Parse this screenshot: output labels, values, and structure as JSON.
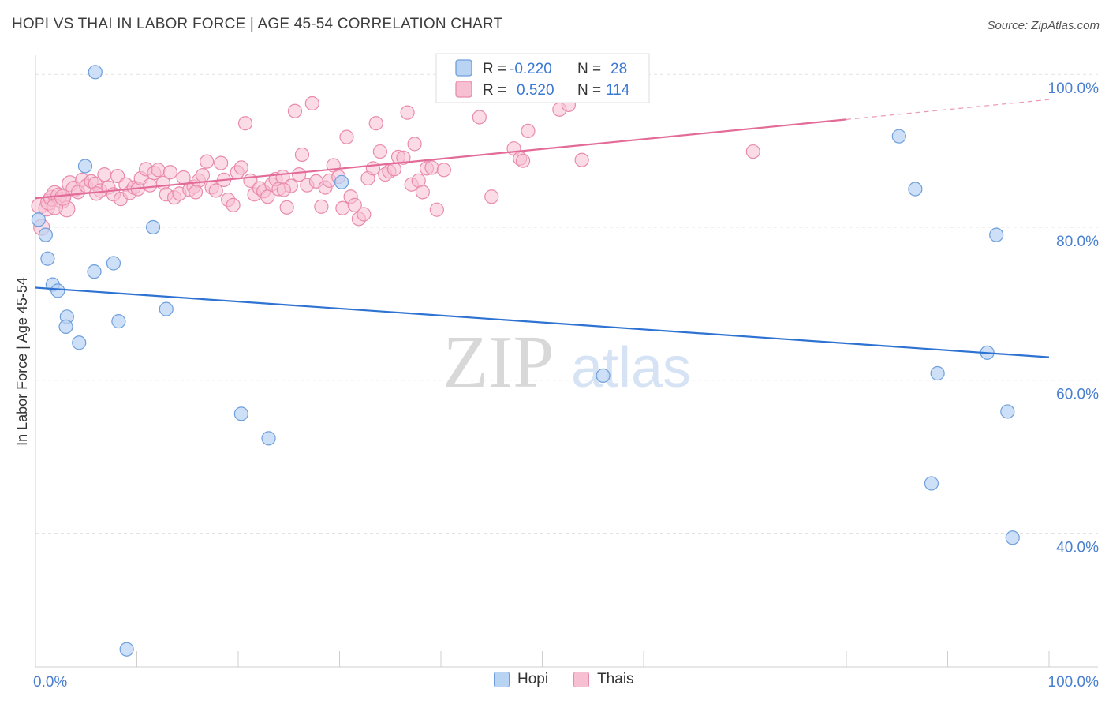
{
  "header": {
    "title": "HOPI VS THAI IN LABOR FORCE | AGE 45-54 CORRELATION CHART",
    "source": "Source: ZipAtlas.com"
  },
  "watermark": {
    "zip": "ZIP",
    "atlas": "atlas"
  },
  "colors": {
    "hopi_fill": "#b9d3f3",
    "hopi_stroke": "#6e9fdc",
    "hopi_line": "#2e72d2",
    "thai_fill": "#f7c0d2",
    "thai_stroke": "#e98bab",
    "thai_line": "#e36b97",
    "tick_label": "#4a7fcf",
    "grid": "#e3e3e3"
  },
  "legend_stats": [
    {
      "name": "Hopi",
      "r_label": "R = ",
      "r_value": "-0.220",
      "n_label": "N = ",
      "n_value": "28"
    },
    {
      "name": "Thais",
      "r_label": "R = ",
      "r_value": "0.520",
      "n_label": "N = ",
      "n_value": "114"
    }
  ],
  "chart_data": {
    "type": "scatter",
    "title": "HOPI VS THAI IN LABOR FORCE | AGE 45-54 CORRELATION CHART",
    "ylabel": "In Labor Force | Age 45-54",
    "xlabel": "",
    "xlim": [
      0,
      100
    ],
    "ylim": [
      22.5,
      102.5
    ],
    "x_tick_labels": [
      {
        "value": 0,
        "label": "0.0%"
      },
      {
        "value": 100,
        "label": "100.0%"
      }
    ],
    "y_tick_labels": [
      {
        "value": 100,
        "label": "100.0%"
      },
      {
        "value": 80,
        "label": "80.0%"
      },
      {
        "value": 60,
        "label": "60.0%"
      },
      {
        "value": 40,
        "label": "40.0%"
      }
    ],
    "legend": [
      "Hopi",
      "Thais"
    ],
    "series": [
      {
        "name": "Hopi",
        "trend": {
          "x0": 0,
          "y0": 72.1,
          "x1": 100,
          "y1": 63.0
        },
        "points": [
          [
            0.3,
            81.0
          ],
          [
            1.0,
            79.0
          ],
          [
            1.2,
            75.9
          ],
          [
            1.7,
            72.5
          ],
          [
            2.2,
            71.7
          ],
          [
            3.1,
            68.3
          ],
          [
            3.0,
            67.0
          ],
          [
            4.3,
            64.9
          ],
          [
            4.9,
            88.0
          ],
          [
            5.8,
            74.2
          ],
          [
            5.9,
            100.3
          ],
          [
            7.7,
            75.3
          ],
          [
            8.2,
            67.7
          ],
          [
            9.0,
            24.8
          ],
          [
            11.6,
            80.0
          ],
          [
            12.9,
            69.3
          ],
          [
            20.3,
            55.6
          ],
          [
            23.0,
            52.4
          ],
          [
            30.2,
            85.9
          ],
          [
            56.0,
            60.6
          ],
          [
            85.2,
            91.9
          ],
          [
            86.8,
            85.0
          ],
          [
            88.4,
            46.5
          ],
          [
            89.0,
            60.9
          ],
          [
            93.9,
            63.6
          ],
          [
            94.8,
            79.0
          ],
          [
            95.9,
            55.9
          ],
          [
            96.4,
            39.4
          ]
        ]
      },
      {
        "name": "Thais",
        "trend": {
          "x0": 0,
          "y0": 83.8,
          "x1": 80,
          "y1": 94.1,
          "dash_to_x": 100,
          "dash_to_y": 96.7
        },
        "points": [
          [
            0.4,
            82.8
          ],
          [
            0.6,
            80.0
          ],
          [
            1.1,
            82.5
          ],
          [
            1.3,
            83.3
          ],
          [
            1.6,
            83.8
          ],
          [
            1.9,
            84.4
          ],
          [
            2.3,
            84.1
          ],
          [
            2.6,
            83.5
          ],
          [
            3.1,
            82.4
          ],
          [
            3.4,
            85.7
          ],
          [
            3.8,
            85.0
          ],
          [
            4.2,
            84.6
          ],
          [
            4.6,
            86.2
          ],
          [
            5.0,
            85.4
          ],
          [
            5.5,
            86.0
          ],
          [
            5.9,
            85.7
          ],
          [
            6.4,
            84.8
          ],
          [
            6.8,
            86.9
          ],
          [
            7.2,
            85.2
          ],
          [
            7.7,
            84.3
          ],
          [
            8.1,
            86.7
          ],
          [
            8.4,
            83.7
          ],
          [
            8.9,
            85.6
          ],
          [
            9.3,
            84.5
          ],
          [
            9.7,
            85.2
          ],
          [
            10.1,
            85.0
          ],
          [
            10.4,
            86.4
          ],
          [
            10.9,
            87.6
          ],
          [
            11.3,
            85.5
          ],
          [
            11.7,
            87.1
          ],
          [
            12.1,
            87.5
          ],
          [
            12.6,
            85.8
          ],
          [
            12.9,
            84.3
          ],
          [
            13.3,
            87.2
          ],
          [
            13.7,
            83.9
          ],
          [
            14.2,
            84.4
          ],
          [
            14.6,
            86.5
          ],
          [
            15.2,
            84.9
          ],
          [
            15.6,
            85.3
          ],
          [
            16.1,
            86.1
          ],
          [
            16.5,
            86.8
          ],
          [
            16.9,
            88.6
          ],
          [
            17.4,
            85.2
          ],
          [
            17.8,
            84.8
          ],
          [
            18.3,
            88.4
          ],
          [
            18.6,
            86.2
          ],
          [
            19.0,
            83.6
          ],
          [
            19.5,
            82.9
          ],
          [
            19.9,
            87.2
          ],
          [
            20.3,
            87.8
          ],
          [
            20.7,
            93.6
          ],
          [
            21.2,
            86.1
          ],
          [
            21.6,
            84.3
          ],
          [
            22.1,
            85.1
          ],
          [
            22.5,
            84.7
          ],
          [
            22.9,
            84.0
          ],
          [
            23.3,
            85.6
          ],
          [
            23.7,
            86.3
          ],
          [
            24.0,
            85.0
          ],
          [
            24.4,
            86.6
          ],
          [
            24.8,
            82.6
          ],
          [
            25.2,
            85.4
          ],
          [
            25.6,
            95.2
          ],
          [
            26.0,
            86.9
          ],
          [
            26.3,
            89.5
          ],
          [
            26.8,
            85.5
          ],
          [
            27.3,
            96.2
          ],
          [
            27.7,
            86.0
          ],
          [
            28.2,
            82.7
          ],
          [
            28.6,
            85.2
          ],
          [
            29.0,
            86.1
          ],
          [
            29.4,
            88.1
          ],
          [
            29.9,
            86.6
          ],
          [
            30.3,
            82.5
          ],
          [
            30.7,
            91.8
          ],
          [
            31.1,
            84.0
          ],
          [
            31.5,
            82.9
          ],
          [
            31.9,
            81.1
          ],
          [
            32.4,
            81.7
          ],
          [
            32.8,
            86.4
          ],
          [
            33.3,
            87.7
          ],
          [
            33.6,
            93.6
          ],
          [
            34.0,
            89.9
          ],
          [
            34.5,
            86.9
          ],
          [
            34.9,
            87.3
          ],
          [
            35.4,
            87.6
          ],
          [
            35.8,
            89.2
          ],
          [
            36.3,
            89.1
          ],
          [
            36.7,
            95.0
          ],
          [
            37.1,
            85.6
          ],
          [
            37.4,
            90.9
          ],
          [
            37.8,
            86.1
          ],
          [
            38.2,
            84.6
          ],
          [
            38.6,
            87.7
          ],
          [
            39.1,
            87.8
          ],
          [
            39.6,
            82.3
          ],
          [
            40.3,
            87.5
          ],
          [
            41.5,
            100.2
          ],
          [
            43.8,
            94.4
          ],
          [
            45.0,
            84.0
          ],
          [
            47.2,
            90.3
          ],
          [
            47.8,
            89.0
          ],
          [
            48.1,
            88.7
          ],
          [
            48.6,
            92.6
          ],
          [
            51.2,
            97.2
          ],
          [
            51.7,
            95.4
          ],
          [
            52.6,
            96.0
          ],
          [
            53.9,
            88.8
          ],
          [
            70.8,
            89.9
          ],
          [
            1.9,
            82.7
          ],
          [
            2.7,
            83.9
          ],
          [
            6.0,
            84.4
          ],
          [
            15.8,
            84.6
          ],
          [
            24.5,
            84.9
          ]
        ]
      }
    ]
  }
}
